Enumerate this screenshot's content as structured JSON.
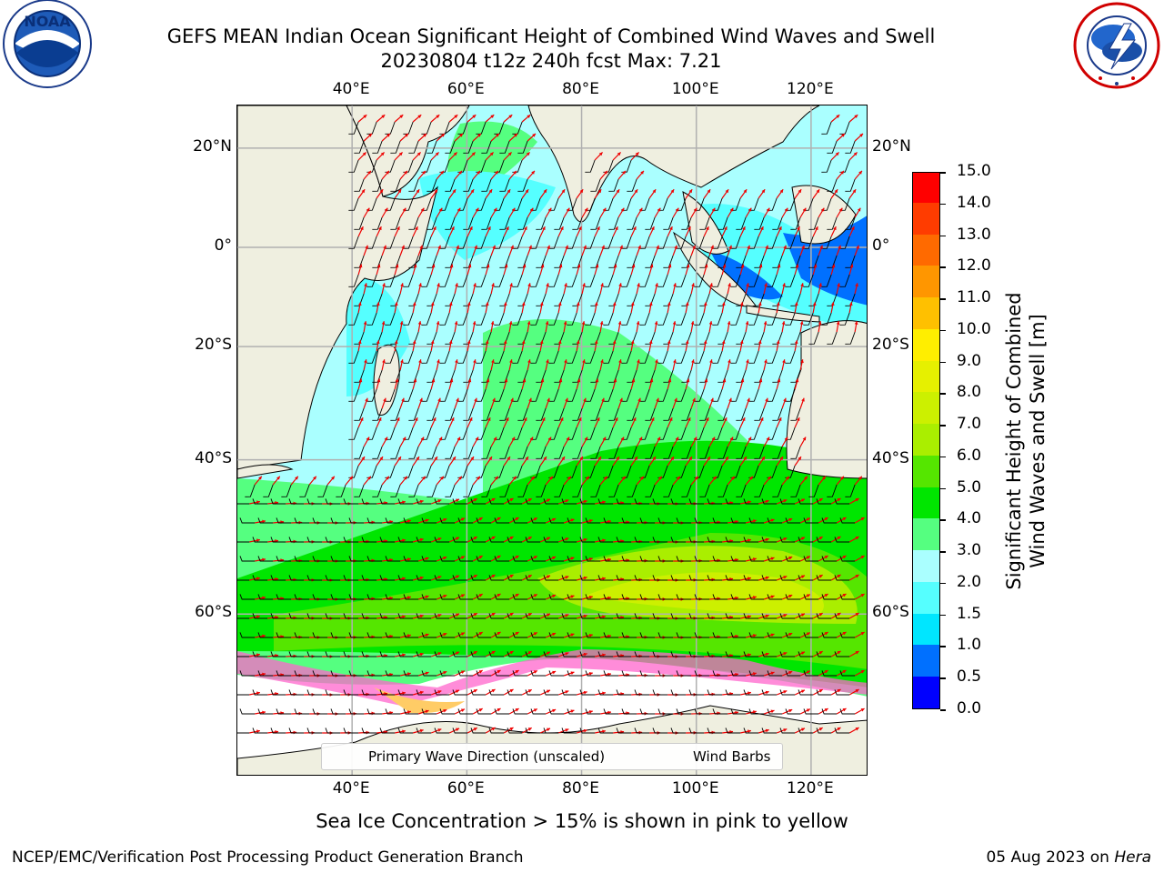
{
  "title": {
    "line1": "GEFS MEAN Indian Ocean Significant Height of Combined Wind Waves and Swell",
    "line2": "20230804 t12z 240h fcst   Max: 7.21"
  },
  "logos": {
    "noaa_text": "NOAA",
    "noaa_ring": "NATIONAL OCEANIC AND ATMOSPHERIC ADMINISTRATION · U.S. DEPARTMENT OF COMMERCE",
    "nws_ring": "NATIONAL WEATHER SERVICE"
  },
  "map": {
    "lon_ticks": [
      "40°E",
      "60°E",
      "80°E",
      "100°E",
      "120°E"
    ],
    "lon_values": [
      40,
      60,
      80,
      100,
      120
    ],
    "lat_ticks": [
      "20°N",
      "0°",
      "20°S",
      "40°S",
      "60°S"
    ],
    "lat_values": [
      20,
      0,
      -20,
      -40,
      -60
    ],
    "lon_range": [
      20,
      130
    ],
    "lat_range": [
      -73,
      28
    ],
    "projection": "mercator",
    "colors": {
      "land": "#efefe0",
      "ice_free_sea_south": "#ffffff",
      "grid": "#b0b0b0",
      "wave_arrow": "#ee0000",
      "wind_barb": "#000000"
    }
  },
  "colorbar": {
    "ticks": [
      "0.0",
      "0.5",
      "1.0",
      "1.5",
      "2.0",
      "3.0",
      "4.0",
      "5.0",
      "6.0",
      "7.0",
      "8.0",
      "9.0",
      "10.0",
      "11.0",
      "12.0",
      "13.0",
      "14.0",
      "15.0"
    ],
    "colors": [
      "#0000ff",
      "#0070ff",
      "#00e6ff",
      "#55ffff",
      "#aaffff",
      "#55ff80",
      "#00e600",
      "#55e600",
      "#aaee00",
      "#ccf000",
      "#e6f000",
      "#ffee00",
      "#ffc000",
      "#ff9600",
      "#ff6a00",
      "#ff3c00",
      "#ff0000"
    ],
    "title_line1": "Significant Height of Combined",
    "title_line2": "Wind Waves and Swell [m]"
  },
  "legend": {
    "wave_label": "Primary Wave Direction (unscaled)",
    "barb_label": "Wind Barbs"
  },
  "bottom_note": "Sea Ice Concentration > 15% is shown in pink to yellow",
  "footer": {
    "left": "NCEP/EMC/Verification Post Processing Product Generation Branch",
    "right_prefix": "05 Aug 2023 on ",
    "right_host": "Hera"
  }
}
